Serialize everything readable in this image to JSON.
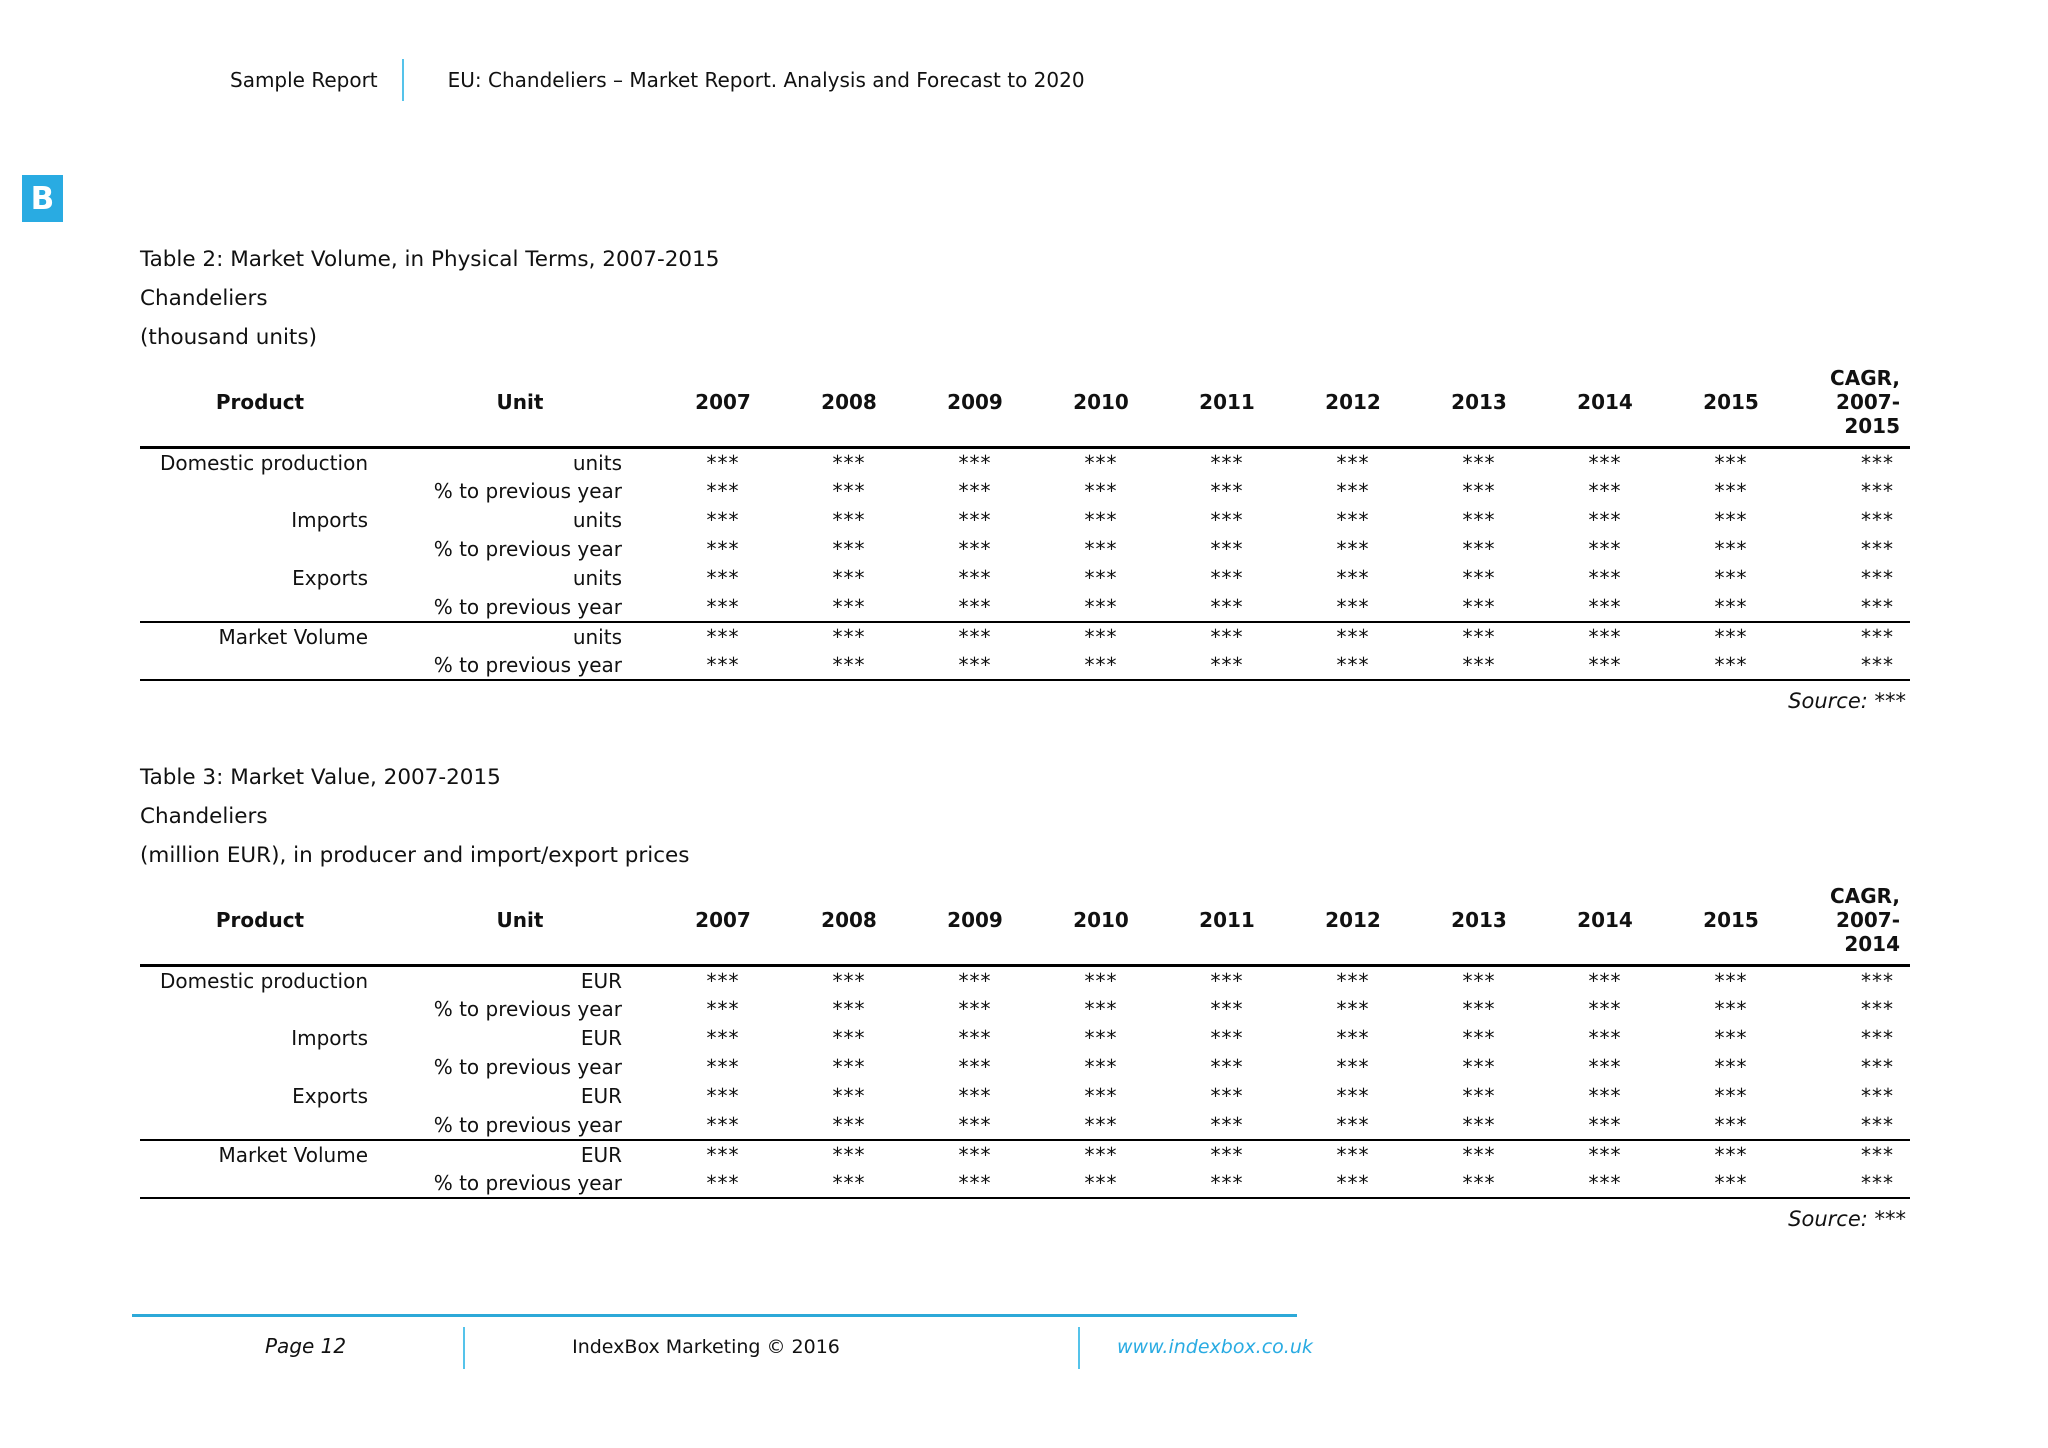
{
  "colors": {
    "accent": "#29abe2",
    "footer_rule": "#2da9d8",
    "separator": "#55c3ea",
    "text": "#111111"
  },
  "header": {
    "left_label": "Sample Report",
    "title": "EU: Chandeliers – Market Report. Analysis and Forecast to 2020"
  },
  "logo": {
    "letter": "B"
  },
  "tables": [
    {
      "title_lines": [
        "Table 2: Market Volume, in Physical Terms, 2007-2015",
        "Chandeliers",
        "(thousand units)"
      ],
      "columns": {
        "product": "Product",
        "unit": "Unit",
        "years": [
          "2007",
          "2008",
          "2009",
          "2010",
          "2011",
          "2012",
          "2013",
          "2014",
          "2015"
        ],
        "cagr_lines": [
          "CAGR,",
          "2007-",
          "2015"
        ]
      },
      "rows": [
        {
          "product": "Domestic production",
          "unit": "units",
          "values": [
            "***",
            "***",
            "***",
            "***",
            "***",
            "***",
            "***",
            "***",
            "***",
            "***"
          ]
        },
        {
          "product": "",
          "unit": "% to previous year",
          "values": [
            "***",
            "***",
            "***",
            "***",
            "***",
            "***",
            "***",
            "***",
            "***",
            "***"
          ]
        },
        {
          "product": "Imports",
          "unit": "units",
          "values": [
            "***",
            "***",
            "***",
            "***",
            "***",
            "***",
            "***",
            "***",
            "***",
            "***"
          ]
        },
        {
          "product": "",
          "unit": "% to previous year",
          "values": [
            "***",
            "***",
            "***",
            "***",
            "***",
            "***",
            "***",
            "***",
            "***",
            "***"
          ]
        },
        {
          "product": "Exports",
          "unit": "units",
          "values": [
            "***",
            "***",
            "***",
            "***",
            "***",
            "***",
            "***",
            "***",
            "***",
            "***"
          ]
        },
        {
          "product": "",
          "unit": "% to previous year",
          "values": [
            "***",
            "***",
            "***",
            "***",
            "***",
            "***",
            "***",
            "***",
            "***",
            "***"
          ]
        },
        {
          "product": "Market Volume",
          "unit": "units",
          "divider_above": true,
          "values": [
            "***",
            "***",
            "***",
            "***",
            "***",
            "***",
            "***",
            "***",
            "***",
            "***"
          ]
        },
        {
          "product": "",
          "unit": "% to previous year",
          "values": [
            "***",
            "***",
            "***",
            "***",
            "***",
            "***",
            "***",
            "***",
            "***",
            "***"
          ]
        }
      ],
      "source": "Source: ***"
    },
    {
      "title_lines": [
        "Table 3: Market Value, 2007-2015",
        "Chandeliers",
        "(million EUR), in producer and import/export prices"
      ],
      "columns": {
        "product": "Product",
        "unit": "Unit",
        "years": [
          "2007",
          "2008",
          "2009",
          "2010",
          "2011",
          "2012",
          "2013",
          "2014",
          "2015"
        ],
        "cagr_lines": [
          "CAGR,",
          "2007-",
          "2014"
        ]
      },
      "rows": [
        {
          "product": "Domestic production",
          "unit": "EUR",
          "values": [
            "***",
            "***",
            "***",
            "***",
            "***",
            "***",
            "***",
            "***",
            "***",
            "***"
          ]
        },
        {
          "product": "",
          "unit": "% to previous year",
          "values": [
            "***",
            "***",
            "***",
            "***",
            "***",
            "***",
            "***",
            "***",
            "***",
            "***"
          ]
        },
        {
          "product": "Imports",
          "unit": "EUR",
          "values": [
            "***",
            "***",
            "***",
            "***",
            "***",
            "***",
            "***",
            "***",
            "***",
            "***"
          ]
        },
        {
          "product": "",
          "unit": "% to previous year",
          "values": [
            "***",
            "***",
            "***",
            "***",
            "***",
            "***",
            "***",
            "***",
            "***",
            "***"
          ]
        },
        {
          "product": "Exports",
          "unit": "EUR",
          "values": [
            "***",
            "***",
            "***",
            "***",
            "***",
            "***",
            "***",
            "***",
            "***",
            "***"
          ]
        },
        {
          "product": "",
          "unit": "% to previous year",
          "values": [
            "***",
            "***",
            "***",
            "***",
            "***",
            "***",
            "***",
            "***",
            "***",
            "***"
          ]
        },
        {
          "product": "Market Volume",
          "unit": "EUR",
          "divider_above": true,
          "values": [
            "***",
            "***",
            "***",
            "***",
            "***",
            "***",
            "***",
            "***",
            "***",
            "***"
          ]
        },
        {
          "product": "",
          "unit": "% to previous year",
          "values": [
            "***",
            "***",
            "***",
            "***",
            "***",
            "***",
            "***",
            "***",
            "***",
            "***"
          ]
        }
      ],
      "source": "Source: ***"
    }
  ],
  "footer": {
    "page_label": "Page 12",
    "center_text": "IndexBox Marketing © 2016",
    "link": "www.indexbox.co.uk"
  }
}
